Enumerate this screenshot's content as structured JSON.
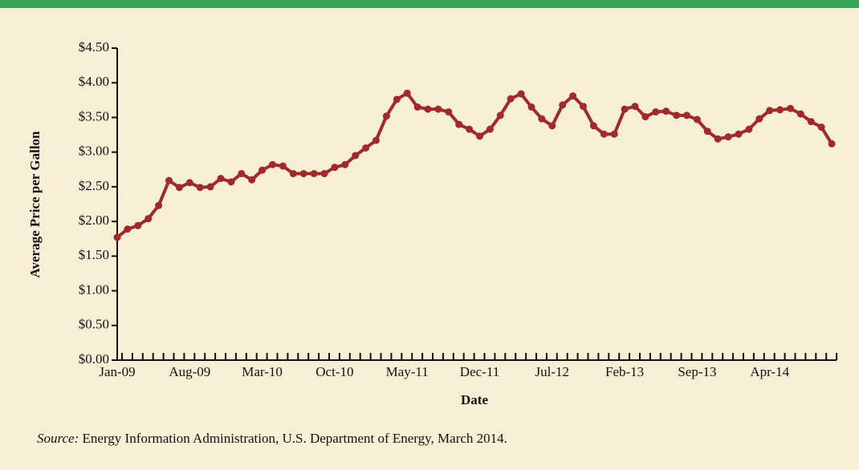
{
  "chart_data": {
    "type": "line",
    "x_label": "Date",
    "y_label": "Average Price per Gallon",
    "source_label": "Source:",
    "source": "Energy Information Administration, U.S. Department of Energy, March 2014.",
    "categories": [
      "Jan-09",
      null,
      null,
      null,
      null,
      null,
      null,
      "Aug-09",
      null,
      null,
      null,
      null,
      null,
      null,
      "Mar-10",
      null,
      null,
      null,
      null,
      null,
      null,
      "Oct-10",
      null,
      null,
      null,
      null,
      null,
      null,
      "May-11",
      null,
      null,
      null,
      null,
      null,
      null,
      "Dec-11",
      null,
      null,
      null,
      null,
      null,
      null,
      "Jul-12",
      null,
      null,
      null,
      null,
      null,
      null,
      "Feb-13",
      null,
      null,
      null,
      null,
      null,
      null,
      "Sep-13",
      null,
      null,
      null,
      null,
      null,
      null,
      "Apr-14",
      null,
      null,
      null,
      null,
      null,
      null
    ],
    "series": [
      {
        "name": "Average Price per Gallon",
        "color": "#a0292c",
        "values": [
          1.77,
          1.89,
          1.94,
          2.04,
          2.23,
          2.59,
          2.49,
          2.56,
          2.49,
          2.5,
          2.62,
          2.57,
          2.69,
          2.6,
          2.74,
          2.82,
          2.8,
          2.69,
          2.69,
          2.69,
          2.69,
          2.78,
          2.82,
          2.95,
          3.06,
          3.17,
          3.52,
          3.76,
          3.85,
          3.65,
          3.62,
          3.62,
          3.58,
          3.4,
          3.33,
          3.23,
          3.33,
          3.53,
          3.77,
          3.84,
          3.65,
          3.48,
          3.38,
          3.68,
          3.81,
          3.66,
          3.38,
          3.26,
          3.26,
          3.62,
          3.66,
          3.51,
          3.58,
          3.59,
          3.53,
          3.53,
          3.47,
          3.3,
          3.19,
          3.22,
          3.26,
          3.33,
          3.48,
          3.6,
          3.61,
          3.63,
          3.55,
          3.44,
          3.36,
          3.12
        ]
      }
    ],
    "ylim": [
      0,
      4.5
    ],
    "yticks": [
      {
        "value": 0,
        "label": "$0.00"
      },
      {
        "value": 0.5,
        "label": "$0.50"
      },
      {
        "value": 1,
        "label": "$1.00"
      },
      {
        "value": 1.5,
        "label": "$1.50"
      },
      {
        "value": 2,
        "label": "$2.00"
      },
      {
        "value": 2.5,
        "label": "$2.50"
      },
      {
        "value": 3,
        "label": "$3.00"
      },
      {
        "value": 3.5,
        "label": "$3.50"
      },
      {
        "value": 4,
        "label": "$4.00"
      },
      {
        "value": 4.5,
        "label": "$4.50"
      }
    ],
    "grid": false
  }
}
